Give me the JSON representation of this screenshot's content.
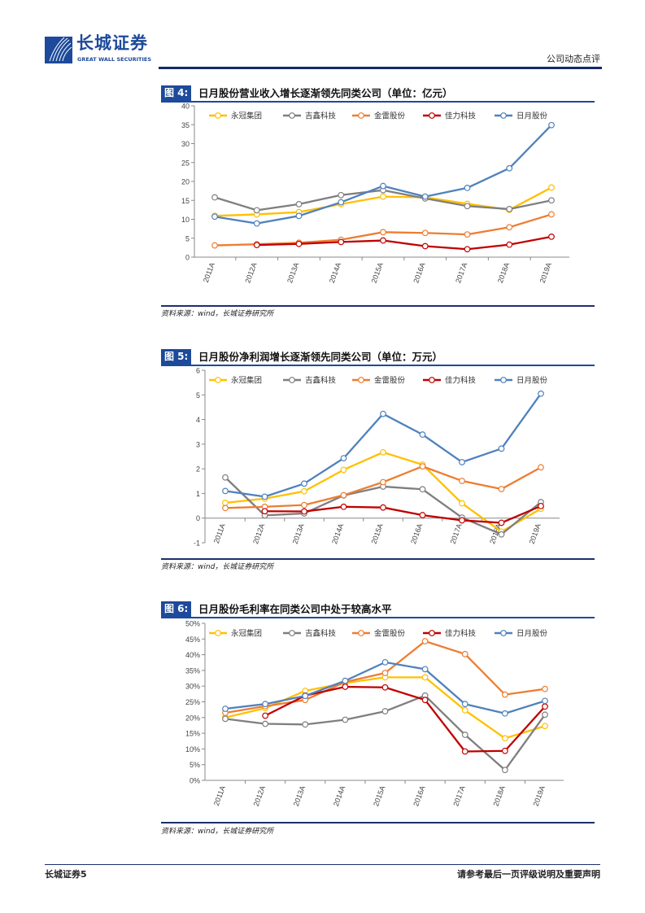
{
  "header": {
    "logo_cn": "长城证券",
    "logo_en": "GREAT WALL SECURITIES",
    "doc_type": "公司动态点评"
  },
  "source_text": "资料来源：wind，长城证券研究所",
  "footer": {
    "left": "长城证券5",
    "right": "请参考最后一页评级说明及重要声明"
  },
  "colors": {
    "永冠集团": "#ffc000",
    "吉鑫科技": "#7f7f7f",
    "金雷股份": "#ed7d31",
    "佳力科技": "#c00000",
    "日月股份": "#4f81bd",
    "brand": "#1d4a9a"
  },
  "chart_data": [
    {
      "type": "line",
      "label": "图 4:",
      "title": "日月股份营业收入增长逐渐领先同类公司（单位：亿元）",
      "categories": [
        "2011A",
        "2012A",
        "2013A",
        "2014A",
        "2015A",
        "2016A",
        "2017A",
        "2018A",
        "2019A"
      ],
      "ylim": [
        0,
        40
      ],
      "yticks": [
        0,
        5,
        10,
        15,
        20,
        25,
        30,
        35,
        40
      ],
      "ytick_labels": [
        "0",
        "5",
        "10",
        "15",
        "20",
        "25",
        "30",
        "35",
        "40"
      ],
      "legend": "top",
      "series": [
        {
          "name": "永冠集团",
          "values": [
            10.9,
            11.3,
            11.9,
            14.0,
            16.0,
            15.8,
            14.1,
            12.5,
            18.4
          ]
        },
        {
          "name": "吉鑫科技",
          "values": [
            15.8,
            12.4,
            14.0,
            16.4,
            17.7,
            15.5,
            13.5,
            12.7,
            15.0
          ]
        },
        {
          "name": "金雷股份",
          "values": [
            3.1,
            3.4,
            3.8,
            4.6,
            6.6,
            6.4,
            6.0,
            7.9,
            11.3
          ]
        },
        {
          "name": "佳力科技",
          "values": [
            null,
            3.2,
            3.5,
            4.0,
            4.4,
            2.9,
            2.1,
            3.3,
            5.4
          ]
        },
        {
          "name": "日月股份",
          "values": [
            10.7,
            8.9,
            10.9,
            14.5,
            18.8,
            16.0,
            18.3,
            23.5,
            34.9
          ]
        }
      ]
    },
    {
      "type": "line",
      "label": "图 5:",
      "title": "日月股份净利润增长逐渐领先同类公司（单位：万元）",
      "categories": [
        "2011A",
        "2012A",
        "2013A",
        "2014A",
        "2015A",
        "2016A",
        "2017A",
        "2018A",
        "2019A"
      ],
      "ylim": [
        -1,
        6
      ],
      "yticks": [
        -1,
        0,
        1,
        2,
        3,
        4,
        5,
        6
      ],
      "ytick_labels": [
        "-1",
        "0",
        "1",
        "2",
        "3",
        "4",
        "5",
        "6"
      ],
      "legend": "top",
      "series": [
        {
          "name": "永冠集团",
          "values": [
            0.62,
            0.79,
            1.09,
            1.96,
            2.67,
            2.17,
            0.6,
            -0.55,
            0.38
          ]
        },
        {
          "name": "吉鑫科技",
          "values": [
            1.65,
            0.11,
            0.19,
            0.92,
            1.28,
            1.17,
            0.02,
            -0.66,
            0.65
          ]
        },
        {
          "name": "金雷股份",
          "values": [
            0.41,
            0.46,
            0.53,
            0.93,
            1.46,
            2.1,
            1.51,
            1.18,
            2.06
          ]
        },
        {
          "name": "佳力科技",
          "values": [
            null,
            0.28,
            0.27,
            0.46,
            0.43,
            0.12,
            -0.09,
            -0.19,
            0.49
          ]
        },
        {
          "name": "日月股份",
          "values": [
            1.1,
            0.87,
            1.4,
            2.43,
            4.23,
            3.39,
            2.27,
            2.82,
            5.05
          ]
        }
      ]
    },
    {
      "type": "line",
      "label": "图 6:",
      "title": "日月股份毛利率在同类公司中处于较高水平",
      "categories": [
        "2011A",
        "2012A",
        "2013A",
        "2014A",
        "2015A",
        "2016A",
        "2017A",
        "2018A",
        "2019A"
      ],
      "ylim": [
        0,
        50
      ],
      "yticks": [
        0,
        5,
        10,
        15,
        20,
        25,
        30,
        35,
        40,
        45,
        50
      ],
      "ytick_labels": [
        "0%",
        "5%",
        "10%",
        "15%",
        "20%",
        "25%",
        "30%",
        "35%",
        "40%",
        "45%",
        "50%"
      ],
      "legend": "top",
      "series": [
        {
          "name": "永冠集团",
          "values": [
            20.0,
            23.0,
            28.5,
            31.0,
            32.8,
            32.8,
            22.3,
            13.4,
            17.3
          ]
        },
        {
          "name": "吉鑫科技",
          "values": [
            19.6,
            18.0,
            17.8,
            19.3,
            22.0,
            27.0,
            14.5,
            3.3,
            20.9
          ]
        },
        {
          "name": "金雷股份",
          "values": [
            21.5,
            23.6,
            25.6,
            31.3,
            34.2,
            44.3,
            40.2,
            27.3,
            29.1
          ]
        },
        {
          "name": "佳力科技",
          "values": [
            null,
            20.6,
            27.0,
            29.8,
            29.6,
            25.6,
            9.2,
            9.4,
            23.5
          ]
        },
        {
          "name": "日月股份",
          "values": [
            22.8,
            24.3,
            26.9,
            31.7,
            37.6,
            35.4,
            24.3,
            21.3,
            25.3
          ]
        }
      ]
    }
  ]
}
